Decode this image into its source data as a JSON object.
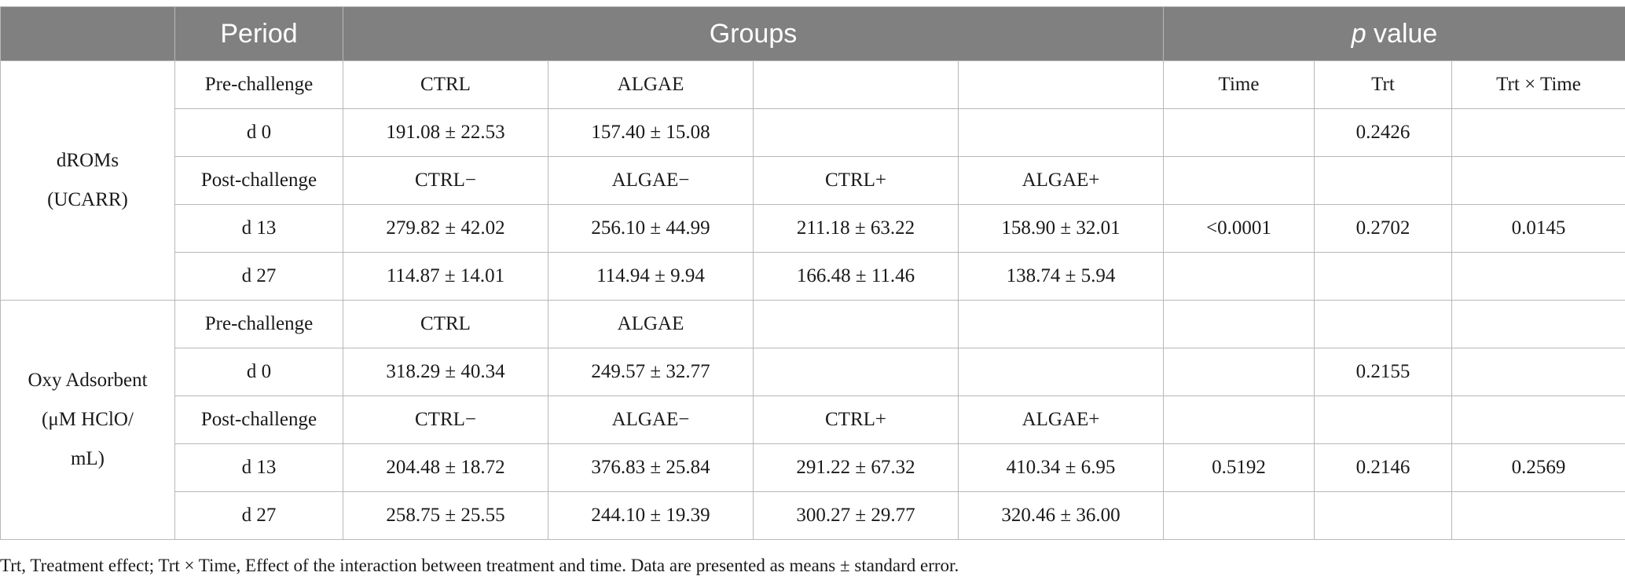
{
  "header": {
    "blank": "",
    "period": "Period",
    "groups": "Groups",
    "p_italic": "p",
    "p_rest": " value"
  },
  "blocks": [
    {
      "var_line1": "dROMs",
      "var_line2": "(UCARR)",
      "var_line3": "",
      "rows": [
        [
          "Pre-challenge",
          "CTRL",
          "ALGAE",
          "",
          "",
          "Time",
          "Trt",
          "Trt × Time"
        ],
        [
          "d 0",
          "191.08 ± 22.53",
          "157.40 ± 15.08",
          "",
          "",
          "",
          "0.2426",
          ""
        ],
        [
          "Post-challenge",
          "CTRL−",
          "ALGAE−",
          "CTRL+",
          "ALGAE+",
          "",
          "",
          ""
        ],
        [
          "d 13",
          "279.82 ± 42.02",
          "256.10 ± 44.99",
          "211.18 ± 63.22",
          "158.90 ± 32.01",
          "<0.0001",
          "0.2702",
          "0.0145"
        ],
        [
          "d 27",
          "114.87 ± 14.01",
          "114.94 ± 9.94",
          "166.48 ± 11.46",
          "138.74 ± 5.94",
          "",
          "",
          ""
        ]
      ]
    },
    {
      "var_line1": "Oxy Adsorbent",
      "var_line2": "(μM HClO/",
      "var_line3": "mL)",
      "rows": [
        [
          "Pre-challenge",
          "CTRL",
          "ALGAE",
          "",
          "",
          "",
          "",
          ""
        ],
        [
          "d 0",
          "318.29 ± 40.34",
          "249.57 ± 32.77",
          "",
          "",
          "",
          "0.2155",
          ""
        ],
        [
          "Post-challenge",
          "CTRL−",
          "ALGAE−",
          "CTRL+",
          "ALGAE+",
          "",
          "",
          ""
        ],
        [
          "d 13",
          "204.48 ± 18.72",
          "376.83 ± 25.84",
          "291.22 ± 67.32",
          "410.34 ± 6.95",
          "0.5192",
          "0.2146",
          "0.2569"
        ],
        [
          "d 27",
          "258.75 ± 25.55",
          "244.10 ± 19.39",
          "300.27 ± 29.77",
          "320.46 ± 36.00",
          "",
          "",
          ""
        ]
      ]
    }
  ],
  "footnote": "Trt, Treatment effect; Trt × Time, Effect of the interaction between treatment and time. Data are presented as means ± standard error."
}
